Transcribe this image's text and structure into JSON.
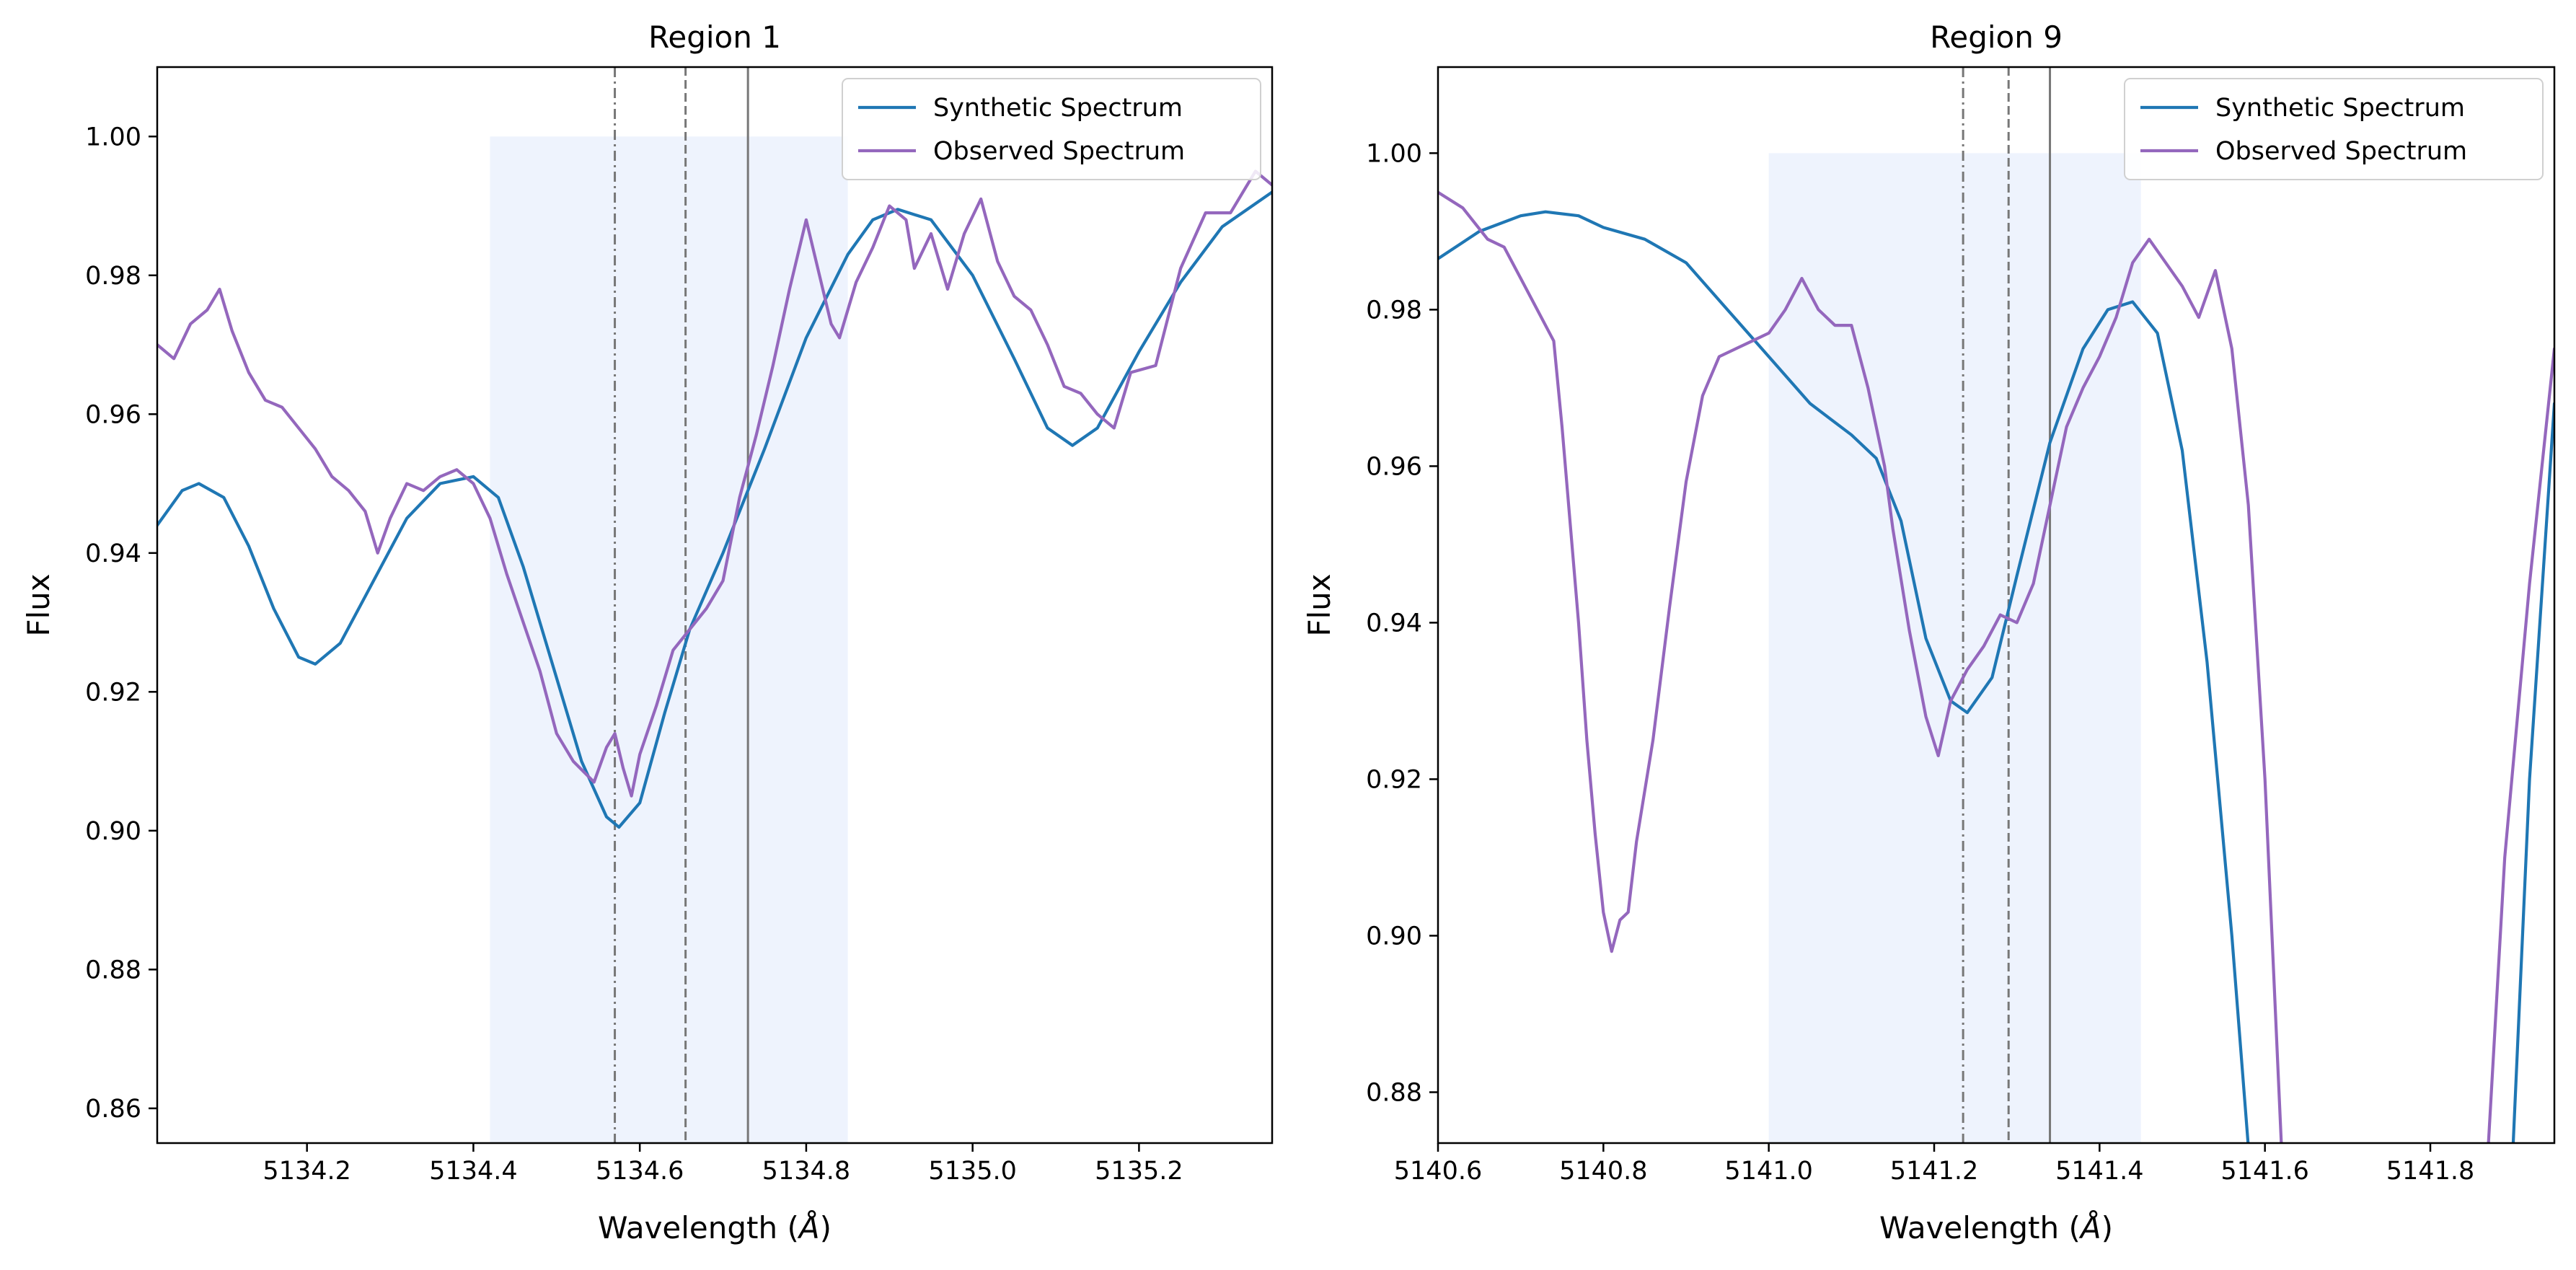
{
  "chart_data": [
    {
      "type": "line",
      "title": "Region 1",
      "xlabel": "Wavelength (",
      "xlabel_unit": "Å",
      "xlabel_close": ")",
      "ylabel": "Flux",
      "xlim": [
        5134.02,
        5135.36
      ],
      "ylim": [
        0.855,
        1.01
      ],
      "xticks": [
        5134.2,
        5134.4,
        5134.6,
        5134.8,
        5135.0,
        5135.2
      ],
      "xtick_labels": [
        "5134.2",
        "5134.4",
        "5134.6",
        "5134.8",
        "5135.0",
        "5135.2"
      ],
      "yticks": [
        0.86,
        0.88,
        0.9,
        0.92,
        0.94,
        0.96,
        0.98,
        1.0
      ],
      "ytick_labels": [
        "0.86",
        "0.88",
        "0.90",
        "0.92",
        "0.94",
        "0.96",
        "0.98",
        "1.00"
      ],
      "grid": false,
      "legend_position": "top-right",
      "shaded_region": {
        "x": [
          5134.42,
          5134.85
        ],
        "y": [
          0.855,
          1.0
        ],
        "color": "#eef3fd"
      },
      "vlines": [
        {
          "x": 5134.57,
          "style": "dashdot",
          "color": "#777777"
        },
        {
          "x": 5134.655,
          "style": "dashed",
          "color": "#777777"
        },
        {
          "x": 5134.73,
          "style": "solid",
          "color": "#777777"
        }
      ],
      "series": [
        {
          "name": "Synthetic Spectrum",
          "color": "#1f77b4",
          "points": [
            [
              5134.02,
              0.944
            ],
            [
              5134.05,
              0.949
            ],
            [
              5134.07,
              0.95
            ],
            [
              5134.1,
              0.948
            ],
            [
              5134.13,
              0.941
            ],
            [
              5134.16,
              0.932
            ],
            [
              5134.19,
              0.925
            ],
            [
              5134.21,
              0.924
            ],
            [
              5134.24,
              0.927
            ],
            [
              5134.28,
              0.936
            ],
            [
              5134.32,
              0.945
            ],
            [
              5134.36,
              0.95
            ],
            [
              5134.4,
              0.951
            ],
            [
              5134.43,
              0.948
            ],
            [
              5134.46,
              0.938
            ],
            [
              5134.5,
              0.922
            ],
            [
              5134.53,
              0.91
            ],
            [
              5134.56,
              0.902
            ],
            [
              5134.575,
              0.9005
            ],
            [
              5134.6,
              0.904
            ],
            [
              5134.63,
              0.917
            ],
            [
              5134.66,
              0.929
            ],
            [
              5134.7,
              0.94
            ],
            [
              5134.75,
              0.955
            ],
            [
              5134.8,
              0.971
            ],
            [
              5134.85,
              0.983
            ],
            [
              5134.88,
              0.988
            ],
            [
              5134.91,
              0.9895
            ],
            [
              5134.95,
              0.988
            ],
            [
              5135.0,
              0.98
            ],
            [
              5135.05,
              0.968
            ],
            [
              5135.09,
              0.958
            ],
            [
              5135.12,
              0.9555
            ],
            [
              5135.15,
              0.958
            ],
            [
              5135.2,
              0.969
            ],
            [
              5135.25,
              0.979
            ],
            [
              5135.3,
              0.987
            ],
            [
              5135.36,
              0.992
            ]
          ]
        },
        {
          "name": "Observed Spectrum",
          "color": "#9467bd",
          "points": [
            [
              5134.02,
              0.97
            ],
            [
              5134.04,
              0.968
            ],
            [
              5134.06,
              0.973
            ],
            [
              5134.08,
              0.975
            ],
            [
              5134.095,
              0.978
            ],
            [
              5134.11,
              0.972
            ],
            [
              5134.13,
              0.966
            ],
            [
              5134.15,
              0.962
            ],
            [
              5134.17,
              0.961
            ],
            [
              5134.19,
              0.958
            ],
            [
              5134.21,
              0.955
            ],
            [
              5134.23,
              0.951
            ],
            [
              5134.25,
              0.949
            ],
            [
              5134.27,
              0.946
            ],
            [
              5134.285,
              0.94
            ],
            [
              5134.3,
              0.945
            ],
            [
              5134.32,
              0.95
            ],
            [
              5134.34,
              0.949
            ],
            [
              5134.36,
              0.951
            ],
            [
              5134.38,
              0.952
            ],
            [
              5134.4,
              0.95
            ],
            [
              5134.42,
              0.945
            ],
            [
              5134.44,
              0.937
            ],
            [
              5134.46,
              0.93
            ],
            [
              5134.48,
              0.923
            ],
            [
              5134.5,
              0.914
            ],
            [
              5134.52,
              0.91
            ],
            [
              5134.545,
              0.907
            ],
            [
              5134.56,
              0.912
            ],
            [
              5134.57,
              0.914
            ],
            [
              5134.58,
              0.909
            ],
            [
              5134.59,
              0.905
            ],
            [
              5134.6,
              0.911
            ],
            [
              5134.62,
              0.918
            ],
            [
              5134.64,
              0.926
            ],
            [
              5134.66,
              0.929
            ],
            [
              5134.68,
              0.932
            ],
            [
              5134.7,
              0.936
            ],
            [
              5134.72,
              0.948
            ],
            [
              5134.74,
              0.957
            ],
            [
              5134.76,
              0.967
            ],
            [
              5134.78,
              0.978
            ],
            [
              5134.8,
              0.988
            ],
            [
              5134.81,
              0.983
            ],
            [
              5134.83,
              0.973
            ],
            [
              5134.84,
              0.971
            ],
            [
              5134.86,
              0.979
            ],
            [
              5134.88,
              0.984
            ],
            [
              5134.9,
              0.99
            ],
            [
              5134.92,
              0.988
            ],
            [
              5134.93,
              0.981
            ],
            [
              5134.95,
              0.986
            ],
            [
              5134.97,
              0.978
            ],
            [
              5134.99,
              0.986
            ],
            [
              5135.01,
              0.991
            ],
            [
              5135.03,
              0.982
            ],
            [
              5135.05,
              0.977
            ],
            [
              5135.07,
              0.975
            ],
            [
              5135.09,
              0.97
            ],
            [
              5135.11,
              0.964
            ],
            [
              5135.13,
              0.963
            ],
            [
              5135.15,
              0.96
            ],
            [
              5135.17,
              0.958
            ],
            [
              5135.19,
              0.966
            ],
            [
              5135.22,
              0.967
            ],
            [
              5135.25,
              0.981
            ],
            [
              5135.28,
              0.989
            ],
            [
              5135.31,
              0.989
            ],
            [
              5135.34,
              0.995
            ],
            [
              5135.36,
              0.993
            ]
          ]
        }
      ]
    },
    {
      "type": "line",
      "title": "Region 9",
      "xlabel": "Wavelength (",
      "xlabel_unit": "Å",
      "xlabel_close": ")",
      "ylabel": "Flux",
      "xlim": [
        5140.6,
        5141.95
      ],
      "ylim": [
        0.8735,
        1.011
      ],
      "xticks": [
        5140.6,
        5140.8,
        5141.0,
        5141.2,
        5141.4,
        5141.6,
        5141.8
      ],
      "xtick_labels": [
        "5140.6",
        "5140.8",
        "5141.0",
        "5141.2",
        "5141.4",
        "5141.6",
        "5141.8"
      ],
      "yticks": [
        0.88,
        0.9,
        0.92,
        0.94,
        0.96,
        0.98,
        1.0
      ],
      "ytick_labels": [
        "0.88",
        "0.90",
        "0.92",
        "0.94",
        "0.96",
        "0.98",
        "1.00"
      ],
      "grid": false,
      "legend_position": "top-right",
      "shaded_region": {
        "x": [
          5141.0,
          5141.45
        ],
        "y": [
          0.8735,
          1.0
        ],
        "color": "#eef3fd"
      },
      "vlines": [
        {
          "x": 5141.235,
          "style": "dashdot",
          "color": "#777777"
        },
        {
          "x": 5141.29,
          "style": "dashed",
          "color": "#777777"
        },
        {
          "x": 5141.34,
          "style": "solid",
          "color": "#777777"
        }
      ],
      "series": [
        {
          "name": "Synthetic Spectrum",
          "color": "#1f77b4",
          "points": [
            [
              5140.6,
              0.9865
            ],
            [
              5140.65,
              0.99
            ],
            [
              5140.7,
              0.992
            ],
            [
              5140.73,
              0.9925
            ],
            [
              5140.77,
              0.992
            ],
            [
              5140.8,
              0.9905
            ],
            [
              5140.85,
              0.989
            ],
            [
              5140.9,
              0.986
            ],
            [
              5140.95,
              0.98
            ],
            [
              5141.0,
              0.974
            ],
            [
              5141.05,
              0.968
            ],
            [
              5141.1,
              0.964
            ],
            [
              5141.13,
              0.961
            ],
            [
              5141.16,
              0.953
            ],
            [
              5141.19,
              0.938
            ],
            [
              5141.22,
              0.93
            ],
            [
              5141.24,
              0.9285
            ],
            [
              5141.27,
              0.933
            ],
            [
              5141.3,
              0.946
            ],
            [
              5141.34,
              0.963
            ],
            [
              5141.38,
              0.975
            ],
            [
              5141.41,
              0.98
            ],
            [
              5141.44,
              0.981
            ],
            [
              5141.47,
              0.977
            ],
            [
              5141.5,
              0.962
            ],
            [
              5141.53,
              0.935
            ],
            [
              5141.56,
              0.9
            ],
            [
              5141.58,
              0.873
            ],
            [
              5141.9,
              0.873
            ],
            [
              5141.92,
              0.92
            ],
            [
              5141.95,
              0.968
            ]
          ]
        },
        {
          "name": "Observed Spectrum",
          "color": "#9467bd",
          "points": [
            [
              5140.6,
              0.995
            ],
            [
              5140.63,
              0.993
            ],
            [
              5140.66,
              0.989
            ],
            [
              5140.68,
              0.988
            ],
            [
              5140.7,
              0.984
            ],
            [
              5140.72,
              0.98
            ],
            [
              5140.74,
              0.976
            ],
            [
              5140.75,
              0.965
            ],
            [
              5140.77,
              0.94
            ],
            [
              5140.78,
              0.925
            ],
            [
              5140.79,
              0.913
            ],
            [
              5140.8,
              0.903
            ],
            [
              5140.81,
              0.898
            ],
            [
              5140.82,
              0.902
            ],
            [
              5140.83,
              0.903
            ],
            [
              5140.84,
              0.912
            ],
            [
              5140.86,
              0.925
            ],
            [
              5140.88,
              0.942
            ],
            [
              5140.9,
              0.958
            ],
            [
              5140.92,
              0.969
            ],
            [
              5140.94,
              0.974
            ],
            [
              5140.96,
              0.975
            ],
            [
              5140.98,
              0.976
            ],
            [
              5141.0,
              0.977
            ],
            [
              5141.02,
              0.98
            ],
            [
              5141.04,
              0.984
            ],
            [
              5141.06,
              0.98
            ],
            [
              5141.08,
              0.978
            ],
            [
              5141.1,
              0.978
            ],
            [
              5141.12,
              0.97
            ],
            [
              5141.14,
              0.96
            ],
            [
              5141.15,
              0.952
            ],
            [
              5141.17,
              0.939
            ],
            [
              5141.19,
              0.928
            ],
            [
              5141.205,
              0.923
            ],
            [
              5141.22,
              0.93
            ],
            [
              5141.24,
              0.934
            ],
            [
              5141.26,
              0.937
            ],
            [
              5141.28,
              0.941
            ],
            [
              5141.3,
              0.94
            ],
            [
              5141.32,
              0.945
            ],
            [
              5141.34,
              0.955
            ],
            [
              5141.36,
              0.965
            ],
            [
              5141.38,
              0.97
            ],
            [
              5141.4,
              0.974
            ],
            [
              5141.42,
              0.979
            ],
            [
              5141.44,
              0.986
            ],
            [
              5141.46,
              0.989
            ],
            [
              5141.48,
              0.986
            ],
            [
              5141.5,
              0.983
            ],
            [
              5141.52,
              0.979
            ],
            [
              5141.54,
              0.985
            ],
            [
              5141.56,
              0.975
            ],
            [
              5141.58,
              0.955
            ],
            [
              5141.6,
              0.92
            ],
            [
              5141.62,
              0.873
            ],
            [
              5141.87,
              0.873
            ],
            [
              5141.89,
              0.91
            ],
            [
              5141.92,
              0.945
            ],
            [
              5141.95,
              0.975
            ]
          ]
        }
      ]
    }
  ]
}
